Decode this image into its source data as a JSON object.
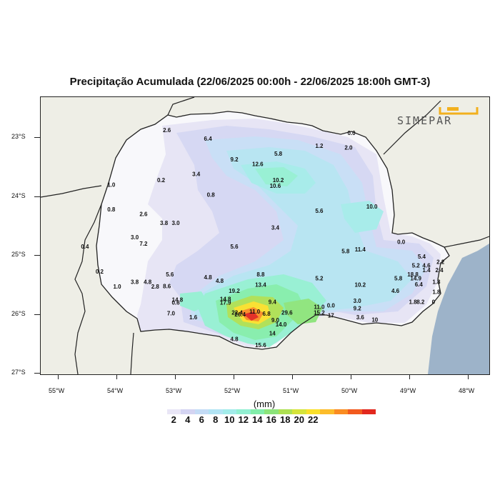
{
  "title": "Precipitação Acumulada (22/06/2025 00:00h - 22/06/2025 18:00h GMT-3)",
  "logo_text": "SIMEPAR",
  "unit_label": "(mm)",
  "lat_labels": [
    "23°S",
    "24°S",
    "25°S",
    "26°S",
    "27°S"
  ],
  "lon_labels": [
    "55°W",
    "54°W",
    "53°W",
    "52°W",
    "51°W",
    "50°W",
    "49°W",
    "48°W"
  ],
  "colorbar": {
    "colors": [
      "#ffffff",
      "#e9e6f6",
      "#d4d4f2",
      "#c4dcf6",
      "#b2e4f4",
      "#a2ecea",
      "#92f0d2",
      "#82eeaa",
      "#8ce47a",
      "#aee052",
      "#d6e43a",
      "#fae02a",
      "#fcbc2a",
      "#fa8c22",
      "#f25a1e",
      "#e2281e"
    ],
    "tick_labels": [
      "2",
      "4",
      "6",
      "8",
      "10",
      "12",
      "14",
      "16",
      "18",
      "20",
      "22"
    ]
  },
  "stations": [
    {
      "v": "2.6",
      "lon": -53.15,
      "lat": -22.9
    },
    {
      "v": "6.4",
      "lon": -52.45,
      "lat": -23.05
    },
    {
      "v": "0.0",
      "lon": -50.0,
      "lat": -22.95
    },
    {
      "v": "1.2",
      "lon": -50.55,
      "lat": -23.17
    },
    {
      "v": "2.0",
      "lon": -50.05,
      "lat": -23.2
    },
    {
      "v": "5.8",
      "lon": -51.25,
      "lat": -23.3
    },
    {
      "v": "9.2",
      "lon": -52.0,
      "lat": -23.4
    },
    {
      "v": "12.6",
      "lon": -51.6,
      "lat": -23.48
    },
    {
      "v": "3.4",
      "lon": -52.65,
      "lat": -23.65
    },
    {
      "v": "0.2",
      "lon": -53.25,
      "lat": -23.75
    },
    {
      "v": "10.2",
      "lon": -51.25,
      "lat": -23.75
    },
    {
      "v": "10.6",
      "lon": -51.3,
      "lat": -23.85
    },
    {
      "v": "1.0",
      "lon": -54.1,
      "lat": -23.83
    },
    {
      "v": "0.8",
      "lon": -52.4,
      "lat": -24.0
    },
    {
      "v": "10.0",
      "lon": -49.65,
      "lat": -24.2
    },
    {
      "v": "0.8",
      "lon": -54.1,
      "lat": -24.25
    },
    {
      "v": "2.6",
      "lon": -53.55,
      "lat": -24.33
    },
    {
      "v": "5.6",
      "lon": -50.55,
      "lat": -24.27
    },
    {
      "v": "3.8",
      "lon": -53.2,
      "lat": -24.48
    },
    {
      "v": "3.0",
      "lon": -53.0,
      "lat": -24.48
    },
    {
      "v": "3.4",
      "lon": -51.3,
      "lat": -24.56
    },
    {
      "v": "3.0",
      "lon": -53.7,
      "lat": -24.72
    },
    {
      "v": "0.0",
      "lon": -49.15,
      "lat": -24.8
    },
    {
      "v": "0.4",
      "lon": -54.55,
      "lat": -24.88
    },
    {
      "v": "7.2",
      "lon": -53.55,
      "lat": -24.83
    },
    {
      "v": "5.6",
      "lon": -52.0,
      "lat": -24.88
    },
    {
      "v": "5.8",
      "lon": -50.1,
      "lat": -24.96
    },
    {
      "v": "11.4",
      "lon": -49.85,
      "lat": -24.93
    },
    {
      "v": "5.4",
      "lon": -48.8,
      "lat": -25.05
    },
    {
      "v": "5.2",
      "lon": -48.9,
      "lat": -25.2
    },
    {
      "v": "4.6",
      "lon": -48.72,
      "lat": -25.2
    },
    {
      "v": "2.2",
      "lon": -48.48,
      "lat": -25.14
    },
    {
      "v": "0.2",
      "lon": -54.3,
      "lat": -25.3
    },
    {
      "v": "5.6",
      "lon": -53.1,
      "lat": -25.35
    },
    {
      "v": "8.8",
      "lon": -51.55,
      "lat": -25.35
    },
    {
      "v": "1.4",
      "lon": -48.72,
      "lat": -25.28
    },
    {
      "v": "2.4",
      "lon": -48.5,
      "lat": -25.28
    },
    {
      "v": "18.8",
      "lon": -48.95,
      "lat": -25.35
    },
    {
      "v": "4.8",
      "lon": -52.45,
      "lat": -25.4
    },
    {
      "v": "4.8",
      "lon": -52.25,
      "lat": -25.46
    },
    {
      "v": "5.2",
      "lon": -50.55,
      "lat": -25.42
    },
    {
      "v": "5.8",
      "lon": -49.2,
      "lat": -25.42
    },
    {
      "v": "14.9",
      "lon": -48.9,
      "lat": -25.42
    },
    {
      "v": "3.8",
      "lon": -53.7,
      "lat": -25.48
    },
    {
      "v": "4.8",
      "lon": -53.48,
      "lat": -25.48
    },
    {
      "v": "1.0",
      "lon": -54.0,
      "lat": -25.56
    },
    {
      "v": "2.8",
      "lon": -53.35,
      "lat": -25.56
    },
    {
      "v": "8.6",
      "lon": -53.15,
      "lat": -25.55
    },
    {
      "v": "13.4",
      "lon": -51.55,
      "lat": -25.53
    },
    {
      "v": "10.2",
      "lon": -49.85,
      "lat": -25.53
    },
    {
      "v": "6.4",
      "lon": -48.85,
      "lat": -25.52
    },
    {
      "v": "1.8",
      "lon": -48.55,
      "lat": -25.48
    },
    {
      "v": "19.2",
      "lon": -52.0,
      "lat": -25.63
    },
    {
      "v": "4.6",
      "lon": -49.25,
      "lat": -25.63
    },
    {
      "v": "1.8",
      "lon": -48.55,
      "lat": -25.65
    },
    {
      "v": "14.8",
      "lon": -52.15,
      "lat": -25.77
    },
    {
      "v": "14.8",
      "lon": -52.97,
      "lat": -25.78
    },
    {
      "v": "17.9",
      "lon": -52.15,
      "lat": -25.83
    },
    {
      "v": "9.4",
      "lon": -51.35,
      "lat": -25.82
    },
    {
      "v": "3.0",
      "lon": -49.9,
      "lat": -25.8
    },
    {
      "v": "1.8",
      "lon": -48.95,
      "lat": -25.82
    },
    {
      "v": "8.2",
      "lon": -48.82,
      "lat": -25.82
    },
    {
      "v": "0",
      "lon": -48.6,
      "lat": -25.82
    },
    {
      "v": "0.6",
      "lon": -53.0,
      "lat": -25.83
    },
    {
      "v": "11.0",
      "lon": -50.55,
      "lat": -25.9
    },
    {
      "v": "0.0",
      "lon": -50.35,
      "lat": -25.88
    },
    {
      "v": "9.2",
      "lon": -49.9,
      "lat": -25.93
    },
    {
      "v": "11.0",
      "lon": -51.65,
      "lat": -25.98
    },
    {
      "v": "7.0",
      "lon": -53.08,
      "lat": -26.01
    },
    {
      "v": "22.4",
      "lon": -51.95,
      "lat": -26.0
    },
    {
      "v": "26.4",
      "lon": -51.9,
      "lat": -26.03
    },
    {
      "v": "6.8",
      "lon": -51.45,
      "lat": -26.02
    },
    {
      "v": "29.6",
      "lon": -51.1,
      "lat": -26.0
    },
    {
      "v": "15.2",
      "lon": -50.55,
      "lat": -26.0
    },
    {
      "v": "17",
      "lon": -50.35,
      "lat": -26.05
    },
    {
      "v": "1.6",
      "lon": -52.7,
      "lat": -26.08
    },
    {
      "v": "9.0",
      "lon": -51.3,
      "lat": -26.13
    },
    {
      "v": "3.6",
      "lon": -49.85,
      "lat": -26.08
    },
    {
      "v": "10",
      "lon": -49.6,
      "lat": -26.12
    },
    {
      "v": "14.0",
      "lon": -51.2,
      "lat": -26.2
    },
    {
      "v": "14",
      "lon": -51.35,
      "lat": -26.35
    },
    {
      "v": "4.8",
      "lon": -52.0,
      "lat": -26.45
    },
    {
      "v": "15.6",
      "lon": -51.55,
      "lat": -26.55
    }
  ]
}
